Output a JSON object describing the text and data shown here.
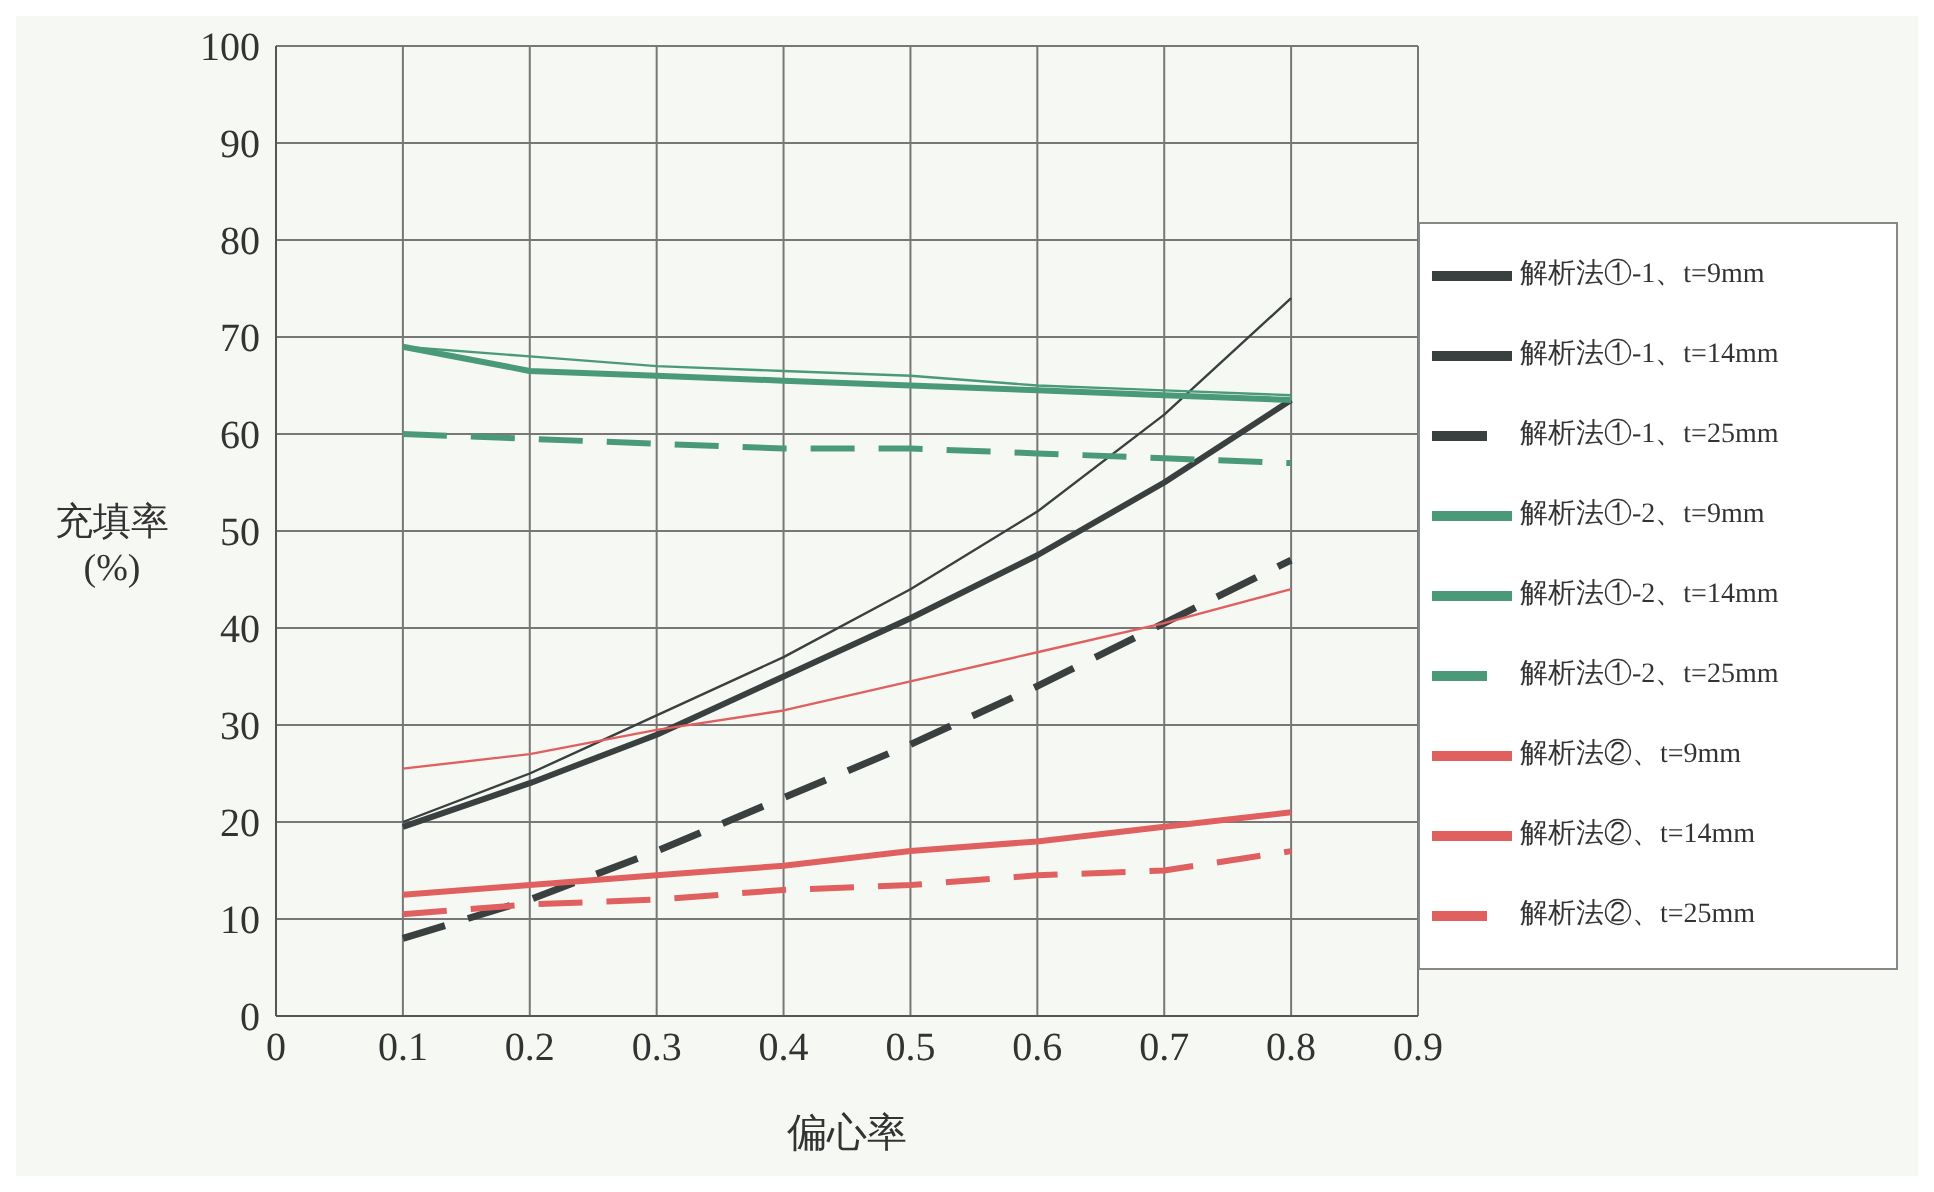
{
  "chart_data": {
    "type": "line",
    "xlabel": "偏心率",
    "ylabel": "充填率 (%)",
    "x": [
      0.1,
      0.2,
      0.3,
      0.4,
      0.5,
      0.6,
      0.7,
      0.8
    ],
    "xlim": [
      0,
      0.9
    ],
    "xticks": [
      0,
      0.1,
      0.2,
      0.3,
      0.4,
      0.5,
      0.6,
      0.7,
      0.8,
      0.9
    ],
    "ylim": [
      0,
      100
    ],
    "yticks": [
      0,
      10,
      20,
      30,
      40,
      50,
      60,
      70,
      80,
      90,
      100
    ],
    "grid": true,
    "legend": "right",
    "marker": "none",
    "series": [
      {
        "name": "解析法①-1、t=9mm",
        "color": "#3a3f3f",
        "line_style": "solid",
        "values": [
          20,
          25,
          31,
          37,
          44,
          52,
          62,
          74
        ]
      },
      {
        "name": "解析法①-1、t=14mm",
        "color": "#3a3f3f",
        "line_style": "solid",
        "values": [
          19.5,
          24,
          29,
          35,
          41,
          47.5,
          55,
          63.5
        ]
      },
      {
        "name": "解析法①-1、t=25mm",
        "color": "#3a3f3f",
        "line_style": "dashed",
        "values": [
          8,
          12,
          17,
          22.5,
          28,
          34,
          40.5,
          47
        ]
      },
      {
        "name": "解析法①-2、t=9mm",
        "color": "#4a9a7a",
        "line_style": "solid",
        "values": [
          69,
          68,
          67,
          66.5,
          66,
          65,
          64.5,
          64
        ]
      },
      {
        "name": "解析法①-2、t=14mm",
        "color": "#4a9a7a",
        "line_style": "solid",
        "values": [
          69,
          66.5,
          66,
          65.5,
          65,
          64.5,
          64,
          63.5
        ]
      },
      {
        "name": "解析法①-2、t=25mm",
        "color": "#4a9a7a",
        "line_style": "dashed",
        "values": [
          60,
          59.5,
          59,
          58.5,
          58.5,
          58,
          57.5,
          57
        ]
      },
      {
        "name": "解析法②、t=9mm",
        "color": "#e06060",
        "line_style": "solid",
        "values": [
          25.5,
          27,
          29.5,
          31.5,
          34.5,
          37.5,
          40.5,
          44
        ]
      },
      {
        "name": "解析法②、t=14mm",
        "color": "#e06060",
        "line_style": "solid",
        "values": [
          12.5,
          13.5,
          14.5,
          15.5,
          17,
          18,
          19.5,
          21
        ]
      },
      {
        "name": "解析法②、t=25mm",
        "color": "#e06060",
        "line_style": "dashed",
        "values": [
          10.5,
          11.5,
          12,
          13,
          13.5,
          14.5,
          15,
          17
        ]
      }
    ]
  }
}
